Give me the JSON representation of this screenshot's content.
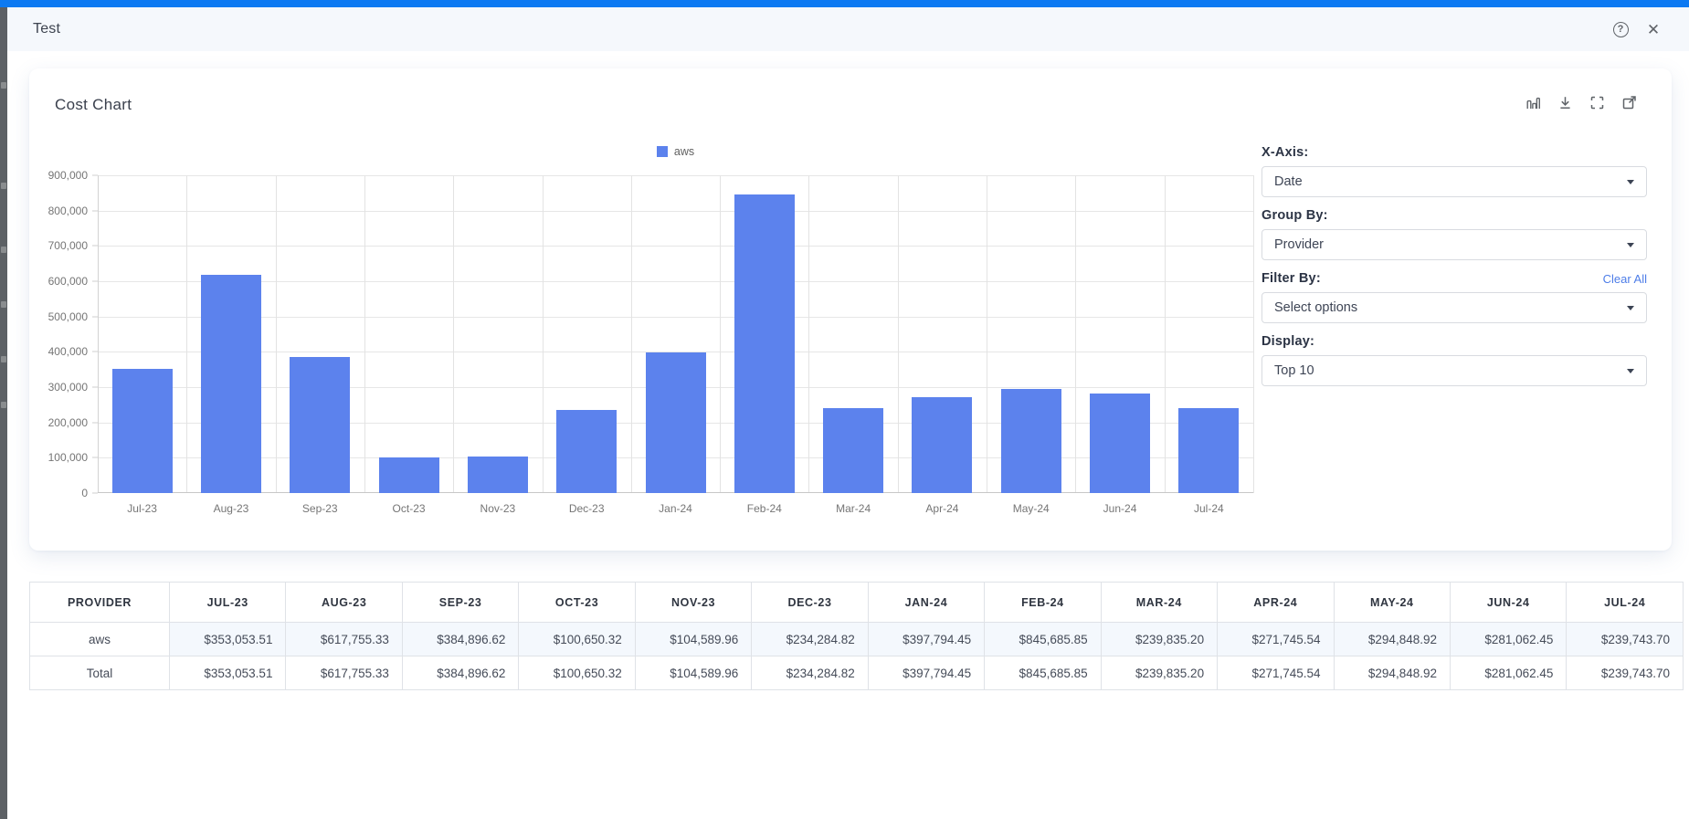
{
  "modal": {
    "title": "Test"
  },
  "card": {
    "title": "Cost Chart",
    "toolbar_icons": [
      "bar-chart-icon",
      "download-icon",
      "fullscreen-icon",
      "open-external-icon"
    ]
  },
  "controls": {
    "x_axis": {
      "label": "X-Axis:",
      "value": "Date"
    },
    "group_by": {
      "label": "Group By:",
      "value": "Provider"
    },
    "filter_by": {
      "label": "Filter By:",
      "value": "Select options",
      "clear_all": "Clear All"
    },
    "display": {
      "label": "Display:",
      "value": "Top 10"
    }
  },
  "chart_data": {
    "type": "bar",
    "title": "",
    "categories": [
      "Jul-23",
      "Aug-23",
      "Sep-23",
      "Oct-23",
      "Nov-23",
      "Dec-23",
      "Jan-24",
      "Feb-24",
      "Mar-24",
      "Apr-24",
      "May-24",
      "Jun-24",
      "Jul-24"
    ],
    "series": [
      {
        "name": "aws",
        "color": "#5c82ed",
        "values": [
          353053.51,
          617755.33,
          384896.62,
          100650.32,
          104589.96,
          234284.82,
          397794.45,
          845685.85,
          239835.2,
          271745.54,
          294848.92,
          281062.45,
          239743.7
        ]
      }
    ],
    "ylim": [
      0,
      900000
    ],
    "ytick_step": 100000,
    "grid": true,
    "legend_position": "top-center"
  },
  "table": {
    "headers": [
      "PROVIDER",
      "JUL-23",
      "AUG-23",
      "SEP-23",
      "OCT-23",
      "NOV-23",
      "DEC-23",
      "JAN-24",
      "FEB-24",
      "MAR-24",
      "APR-24",
      "MAY-24",
      "JUN-24",
      "JUL-24"
    ],
    "rows": [
      {
        "provider": "aws",
        "highlight": true,
        "values": [
          "$353,053.51",
          "$617,755.33",
          "$384,896.62",
          "$100,650.32",
          "$104,589.96",
          "$234,284.82",
          "$397,794.45",
          "$845,685.85",
          "$239,835.20",
          "$271,745.54",
          "$294,848.92",
          "$281,062.45",
          "$239,743.70"
        ]
      },
      {
        "provider": "Total",
        "highlight": false,
        "values": [
          "$353,053.51",
          "$617,755.33",
          "$384,896.62",
          "$100,650.32",
          "$104,589.96",
          "$234,284.82",
          "$397,794.45",
          "$845,685.85",
          "$239,835.20",
          "$271,745.54",
          "$294,848.92",
          "$281,062.45",
          "$239,743.70"
        ]
      }
    ]
  },
  "colors": {
    "top_bar": "#0d7af2",
    "bar_fill": "#5c82ed",
    "header_bg": "#f5f8fc",
    "link_blue": "#4d7de8"
  }
}
